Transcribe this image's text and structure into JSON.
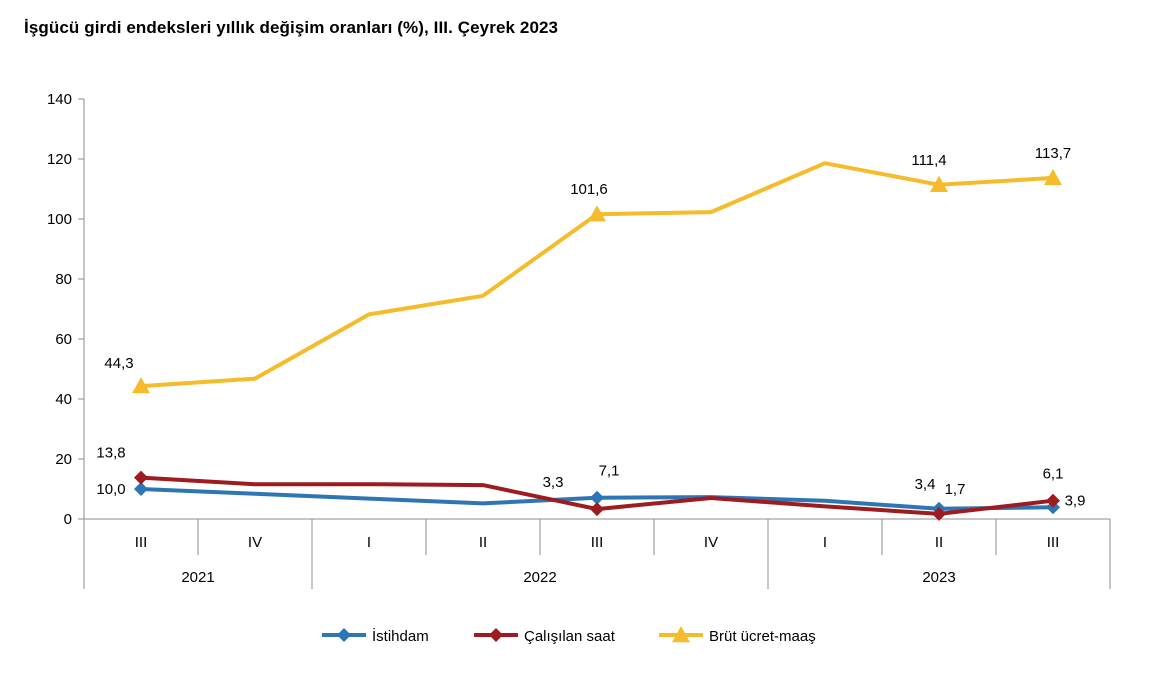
{
  "chart_data": {
    "type": "line",
    "title": "İşgücü girdi endeksleri yıllık değişim oranları (%), III. Çeyrek 2023",
    "quarters": [
      "III",
      "IV",
      "I",
      "II",
      "III",
      "IV",
      "I",
      "II",
      "III"
    ],
    "years": [
      {
        "label": "2021",
        "span": 2
      },
      {
        "label": "2022",
        "span": 4
      },
      {
        "label": "2023",
        "span": 3
      }
    ],
    "ylim": [
      0,
      140
    ],
    "yticks": [
      0,
      20,
      40,
      60,
      80,
      100,
      120,
      140
    ],
    "grid": false,
    "legend_position": "bottom",
    "series": [
      {
        "name": "İstihdam",
        "color": "#2e75b6",
        "marker": "diamond",
        "values": [
          10.0,
          8.4,
          6.8,
          5.2,
          7.1,
          7.3,
          6.1,
          3.4,
          3.9
        ],
        "labels": [
          {
            "index": 0,
            "text": "10,0"
          },
          {
            "index": 4,
            "text": "7,1"
          },
          {
            "index": 7,
            "text": "3,4"
          },
          {
            "index": 8,
            "text": "3,9"
          }
        ]
      },
      {
        "name": "Çalışılan saat",
        "color": "#9e1b20",
        "marker": "diamond",
        "values": [
          13.8,
          11.6,
          11.6,
          11.3,
          3.3,
          7.0,
          4.2,
          1.7,
          6.1
        ],
        "labels": [
          {
            "index": 0,
            "text": "13,8"
          },
          {
            "index": 4,
            "text": "3,3"
          },
          {
            "index": 7,
            "text": "1,7"
          },
          {
            "index": 8,
            "text": "6,1"
          }
        ]
      },
      {
        "name": "Brüt ücret-maaş",
        "color": "#f6bb2a",
        "marker": "triangle",
        "values": [
          44.3,
          46.8,
          68.2,
          74.4,
          101.6,
          102.3,
          118.6,
          111.4,
          113.7
        ],
        "labels": [
          {
            "index": 0,
            "text": "44,3"
          },
          {
            "index": 4,
            "text": "101,6"
          },
          {
            "index": 7,
            "text": "111,4"
          },
          {
            "index": 8,
            "text": "113,7"
          }
        ]
      }
    ]
  }
}
